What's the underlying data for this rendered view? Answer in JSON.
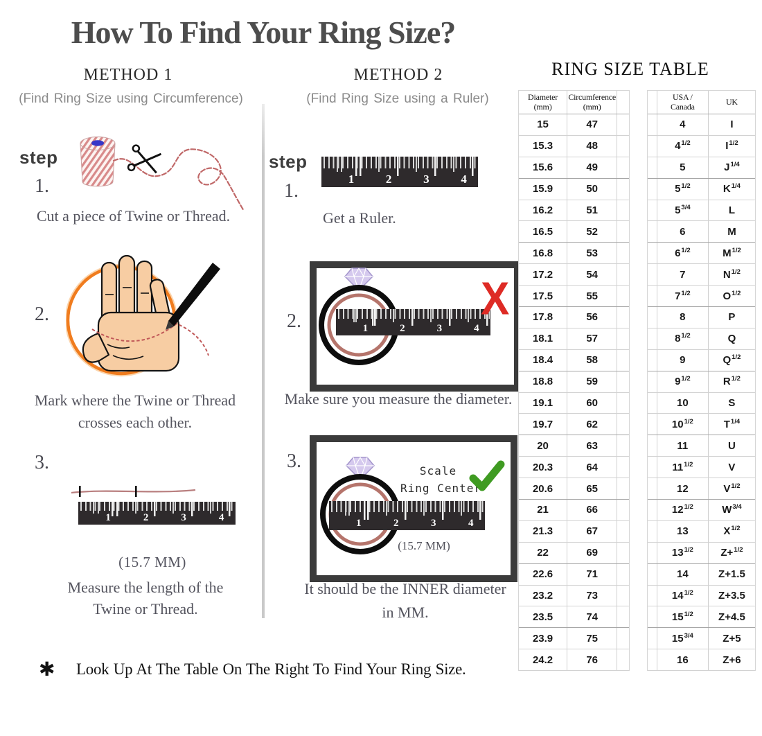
{
  "title": "How To Find Your Ring Size?",
  "method1": {
    "heading": "METHOD 1",
    "subtitle": "(Find Ring Size using Circumference)",
    "step_label": "step",
    "step1": {
      "num": "1.",
      "caption": "Cut a piece of Twine or Thread."
    },
    "step2": {
      "num": "2.",
      "caption_line1": "Mark where the Twine or Thread",
      "caption_line2": "crosses each other."
    },
    "step3": {
      "num": "3.",
      "measurement": "(15.7 MM)",
      "caption_line1": "Measure the length of the",
      "caption_line2": "Twine or Thread."
    }
  },
  "method2": {
    "heading": "METHOD 2",
    "subtitle": "(Find Ring Size using a Ruler)",
    "step_label": "step",
    "step1": {
      "num": "1.",
      "caption": "Get a Ruler."
    },
    "step2": {
      "num": "2.",
      "x_mark": "X",
      "caption": "Make sure you measure the diameter."
    },
    "step3": {
      "num": "3.",
      "scale_line1": "Scale",
      "scale_line2": "Ring Center",
      "measurement": "(15.7 MM)",
      "caption_line1": "It should be the INNER diameter",
      "caption_line2": "in MM."
    }
  },
  "ruler_numbers": [
    "1",
    "2",
    "3",
    "4"
  ],
  "ring_size_table": {
    "heading": "RING SIZE TABLE",
    "metric_table": {
      "headers": [
        {
          "line1": "Diameter",
          "line2": "(mm)"
        },
        {
          "line1": "Circumference",
          "line2": "(mm)"
        }
      ],
      "rows": [
        [
          "15",
          "47"
        ],
        [
          "15.3",
          "48"
        ],
        [
          "15.6",
          "49"
        ],
        [
          "15.9",
          "50"
        ],
        [
          "16.2",
          "51"
        ],
        [
          "16.5",
          "52"
        ],
        [
          "16.8",
          "53"
        ],
        [
          "17.2",
          "54"
        ],
        [
          "17.5",
          "55"
        ],
        [
          "17.8",
          "56"
        ],
        [
          "18.1",
          "57"
        ],
        [
          "18.4",
          "58"
        ],
        [
          "18.8",
          "59"
        ],
        [
          "19.1",
          "60"
        ],
        [
          "19.7",
          "62"
        ],
        [
          "20",
          "63"
        ],
        [
          "20.3",
          "64"
        ],
        [
          "20.6",
          "65"
        ],
        [
          "21",
          "66"
        ],
        [
          "21.3",
          "67"
        ],
        [
          "22",
          "69"
        ],
        [
          "22.6",
          "71"
        ],
        [
          "23.2",
          "73"
        ],
        [
          "23.5",
          "74"
        ],
        [
          "23.9",
          "75"
        ],
        [
          "24.2",
          "76"
        ]
      ]
    },
    "size_table": {
      "headers": [
        {
          "line1": "USA /",
          "line2": "Canada"
        },
        {
          "line1": "UK",
          "line2": ""
        }
      ],
      "rows": [
        [
          [
            "4",
            ""
          ],
          [
            "I",
            ""
          ]
        ],
        [
          [
            "4",
            "1/2"
          ],
          [
            "I",
            "1/2"
          ]
        ],
        [
          [
            "5",
            ""
          ],
          [
            "J",
            "1/4"
          ]
        ],
        [
          [
            "5",
            "1/2"
          ],
          [
            "K",
            "1/4"
          ]
        ],
        [
          [
            "5",
            "3/4"
          ],
          [
            "L",
            ""
          ]
        ],
        [
          [
            "6",
            ""
          ],
          [
            "M",
            ""
          ]
        ],
        [
          [
            "6",
            "1/2"
          ],
          [
            "M",
            "1/2"
          ]
        ],
        [
          [
            "7",
            ""
          ],
          [
            "N",
            "1/2"
          ]
        ],
        [
          [
            "7",
            "1/2"
          ],
          [
            "O",
            "1/2"
          ]
        ],
        [
          [
            "8",
            ""
          ],
          [
            "P",
            ""
          ]
        ],
        [
          [
            "8",
            "1/2"
          ],
          [
            "Q",
            ""
          ]
        ],
        [
          [
            "9",
            ""
          ],
          [
            "Q",
            "1/2"
          ]
        ],
        [
          [
            "9",
            "1/2"
          ],
          [
            "R",
            "1/2"
          ]
        ],
        [
          [
            "10",
            ""
          ],
          [
            "S",
            ""
          ]
        ],
        [
          [
            "10",
            "1/2"
          ],
          [
            "T",
            "1/4"
          ]
        ],
        [
          [
            "11",
            ""
          ],
          [
            "U",
            ""
          ]
        ],
        [
          [
            "11",
            "1/2"
          ],
          [
            "V",
            ""
          ]
        ],
        [
          [
            "12",
            ""
          ],
          [
            "V",
            "1/2"
          ]
        ],
        [
          [
            "12",
            "1/2"
          ],
          [
            "W",
            "3/4"
          ]
        ],
        [
          [
            "13",
            ""
          ],
          [
            "X",
            "1/2"
          ]
        ],
        [
          [
            "13",
            "1/2"
          ],
          [
            "Z+",
            "1/2"
          ]
        ],
        [
          [
            "14",
            ""
          ],
          [
            "Z+1.5",
            ""
          ]
        ],
        [
          [
            "14",
            "1/2"
          ],
          [
            "Z+3.5",
            ""
          ]
        ],
        [
          [
            "15",
            "1/2"
          ],
          [
            "Z+4.5",
            ""
          ]
        ],
        [
          [
            "15",
            "3/4"
          ],
          [
            "Z+5",
            ""
          ]
        ],
        [
          [
            "16",
            ""
          ],
          [
            "Z+6",
            ""
          ]
        ]
      ]
    }
  },
  "footer": {
    "asterisk": "✱",
    "note": "Look Up At The Table On The Right To Find Your Ring Size."
  },
  "colors": {
    "orange_circle": "#f07c1e",
    "red_x": "#de2b25",
    "green_check": "#3f9b22",
    "twine_red": "#c06868",
    "ring_inner": "#b5746b",
    "ruler_dark": "#2e2a2c"
  }
}
